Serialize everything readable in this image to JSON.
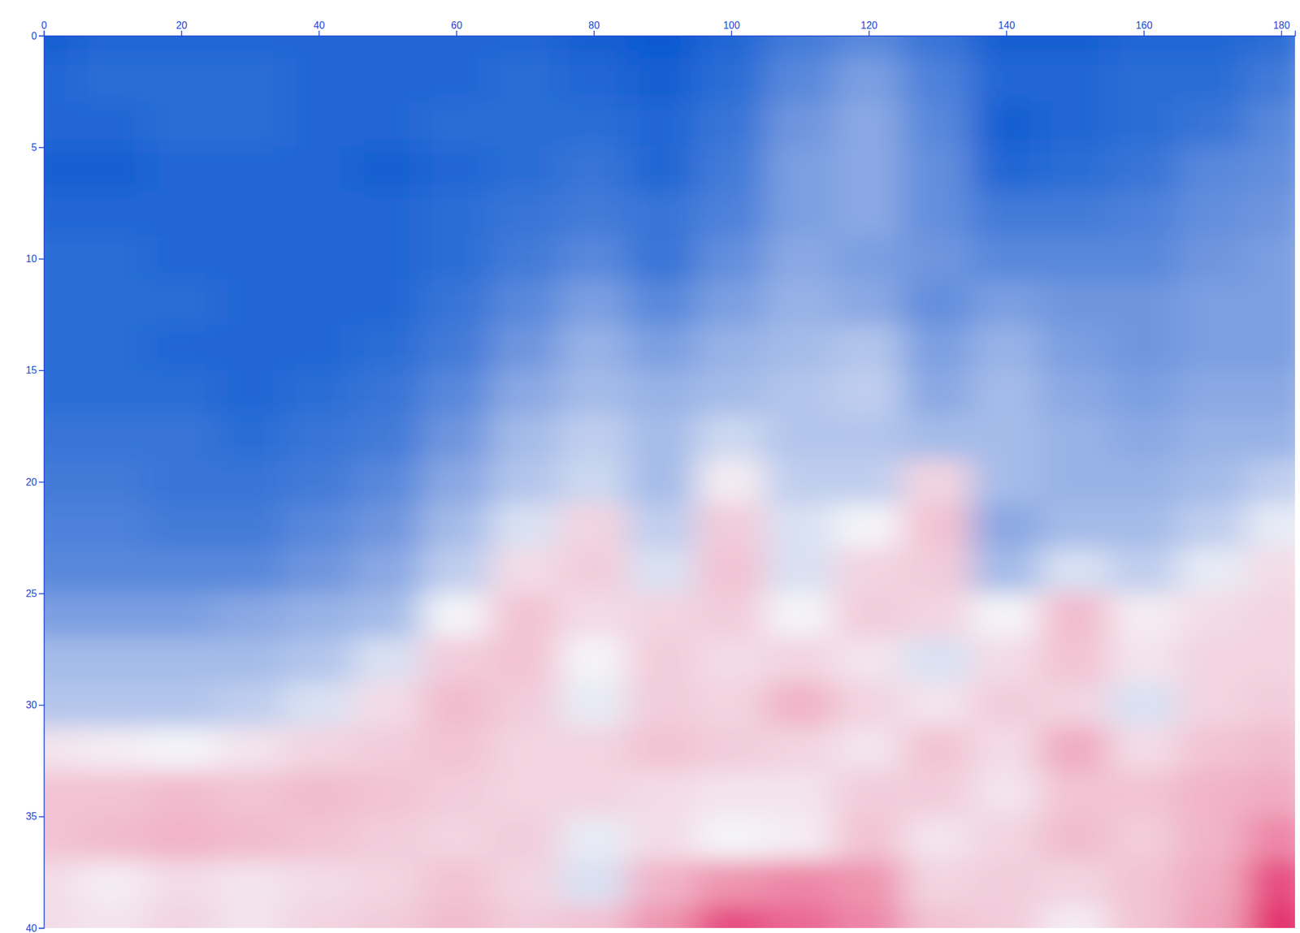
{
  "chart_data": {
    "type": "heatmap",
    "x": [
      0,
      10,
      20,
      30,
      40,
      50,
      60,
      70,
      80,
      90,
      100,
      110,
      120,
      130,
      140,
      150,
      160,
      170,
      180
    ],
    "y": [
      0,
      2,
      4,
      6,
      8,
      10,
      12,
      14,
      16,
      18,
      20,
      22,
      24,
      26,
      28,
      30,
      32,
      34,
      36,
      38,
      40
    ],
    "values": [
      [
        -0.9,
        -0.85,
        -0.85,
        -0.85,
        -0.85,
        -0.85,
        -0.85,
        -0.85,
        -0.9,
        -0.95,
        -0.85,
        -0.7,
        -0.6,
        -0.75,
        -0.9,
        -0.9,
        -0.85,
        -0.85,
        -0.8
      ],
      [
        -0.85,
        -0.8,
        -0.8,
        -0.8,
        -0.85,
        -0.85,
        -0.85,
        -0.8,
        -0.85,
        -0.9,
        -0.8,
        -0.6,
        -0.45,
        -0.65,
        -0.85,
        -0.85,
        -0.8,
        -0.8,
        -0.7
      ],
      [
        -0.85,
        -0.85,
        -0.8,
        -0.8,
        -0.85,
        -0.85,
        -0.8,
        -0.8,
        -0.8,
        -0.85,
        -0.75,
        -0.5,
        -0.4,
        -0.6,
        -0.9,
        -0.85,
        -0.8,
        -0.75,
        -0.6
      ],
      [
        -0.9,
        -0.9,
        -0.85,
        -0.85,
        -0.85,
        -0.9,
        -0.85,
        -0.8,
        -0.75,
        -0.85,
        -0.7,
        -0.45,
        -0.4,
        -0.55,
        -0.85,
        -0.8,
        -0.75,
        -0.6,
        -0.55
      ],
      [
        -0.85,
        -0.85,
        -0.85,
        -0.85,
        -0.85,
        -0.85,
        -0.8,
        -0.75,
        -0.7,
        -0.75,
        -0.65,
        -0.45,
        -0.4,
        -0.55,
        -0.7,
        -0.7,
        -0.65,
        -0.55,
        -0.5
      ],
      [
        -0.8,
        -0.8,
        -0.85,
        -0.85,
        -0.85,
        -0.85,
        -0.8,
        -0.7,
        -0.6,
        -0.75,
        -0.55,
        -0.4,
        -0.45,
        -0.5,
        -0.6,
        -0.6,
        -0.6,
        -0.5,
        -0.45
      ],
      [
        -0.8,
        -0.8,
        -0.8,
        -0.85,
        -0.85,
        -0.85,
        -0.75,
        -0.6,
        -0.45,
        -0.6,
        -0.45,
        -0.35,
        -0.4,
        -0.55,
        -0.45,
        -0.5,
        -0.5,
        -0.45,
        -0.45
      ],
      [
        -0.8,
        -0.8,
        -0.85,
        -0.85,
        -0.85,
        -0.8,
        -0.7,
        -0.5,
        -0.35,
        -0.45,
        -0.35,
        -0.3,
        -0.25,
        -0.45,
        -0.35,
        -0.45,
        -0.5,
        -0.45,
        -0.45
      ],
      [
        -0.8,
        -0.8,
        -0.8,
        -0.85,
        -0.8,
        -0.75,
        -0.6,
        -0.4,
        -0.3,
        -0.35,
        -0.3,
        -0.25,
        -0.2,
        -0.4,
        -0.3,
        -0.4,
        -0.45,
        -0.4,
        -0.4
      ],
      [
        -0.75,
        -0.75,
        -0.75,
        -0.8,
        -0.75,
        -0.7,
        -0.5,
        -0.3,
        -0.2,
        -0.3,
        -0.15,
        -0.25,
        -0.25,
        -0.3,
        -0.3,
        -0.35,
        -0.4,
        -0.35,
        -0.35
      ],
      [
        -0.7,
        -0.7,
        -0.75,
        -0.75,
        -0.7,
        -0.6,
        -0.4,
        -0.25,
        -0.15,
        -0.3,
        0.05,
        -0.2,
        -0.2,
        0.2,
        -0.3,
        -0.35,
        -0.35,
        -0.3,
        -0.2
      ],
      [
        -0.65,
        -0.65,
        -0.7,
        -0.7,
        -0.6,
        -0.5,
        -0.3,
        -0.1,
        0.2,
        -0.2,
        0.25,
        -0.1,
        0.0,
        0.3,
        -0.4,
        -0.3,
        -0.3,
        -0.2,
        -0.05
      ],
      [
        -0.6,
        -0.6,
        -0.6,
        -0.6,
        -0.5,
        -0.4,
        -0.2,
        0.15,
        0.25,
        -0.1,
        0.3,
        -0.1,
        0.2,
        0.25,
        -0.3,
        -0.1,
        -0.2,
        -0.05,
        0.15
      ],
      [
        -0.45,
        -0.45,
        -0.45,
        -0.4,
        -0.35,
        -0.3,
        0.0,
        0.3,
        0.15,
        0.2,
        0.25,
        0.0,
        0.25,
        0.2,
        0.0,
        0.35,
        0.05,
        0.15,
        0.2
      ],
      [
        -0.3,
        -0.3,
        -0.3,
        -0.3,
        -0.25,
        -0.1,
        0.25,
        0.3,
        0.0,
        0.25,
        0.15,
        0.2,
        0.1,
        -0.1,
        0.15,
        0.3,
        0.1,
        0.2,
        0.2
      ],
      [
        -0.25,
        -0.25,
        -0.25,
        -0.2,
        -0.1,
        0.15,
        0.35,
        0.25,
        -0.05,
        0.25,
        0.2,
        0.4,
        0.2,
        0.1,
        0.25,
        0.2,
        -0.1,
        0.2,
        0.25
      ],
      [
        0.1,
        0.05,
        0.0,
        0.1,
        0.2,
        0.25,
        0.3,
        0.2,
        0.2,
        0.3,
        0.25,
        0.2,
        0.1,
        0.3,
        0.15,
        0.45,
        0.15,
        0.3,
        0.35
      ],
      [
        0.3,
        0.3,
        0.35,
        0.3,
        0.35,
        0.3,
        0.25,
        0.2,
        0.2,
        0.15,
        0.1,
        0.1,
        0.25,
        0.25,
        0.1,
        0.3,
        0.3,
        0.4,
        0.45
      ],
      [
        0.3,
        0.35,
        0.4,
        0.35,
        0.3,
        0.25,
        0.2,
        0.25,
        -0.05,
        0.15,
        0.0,
        0.05,
        0.3,
        0.1,
        0.2,
        0.35,
        0.25,
        0.4,
        0.6
      ],
      [
        0.15,
        0.05,
        0.15,
        0.1,
        0.15,
        0.2,
        0.3,
        0.2,
        -0.1,
        0.4,
        0.55,
        0.6,
        0.55,
        0.2,
        0.25,
        0.2,
        0.3,
        0.45,
        0.8
      ],
      [
        0.15,
        0.1,
        0.2,
        0.1,
        0.2,
        0.25,
        0.35,
        0.25,
        0.3,
        0.55,
        0.8,
        0.7,
        0.6,
        0.3,
        0.25,
        0.05,
        0.3,
        0.5,
        0.9
      ]
    ],
    "zlim": [
      -1,
      1
    ],
    "xlim": [
      0,
      182
    ],
    "ylim": [
      0,
      40
    ],
    "xticks": [
      0,
      20,
      40,
      60,
      80,
      100,
      120,
      140,
      160,
      180
    ],
    "yticks": [
      0,
      5,
      10,
      15,
      20,
      25,
      30,
      35,
      40
    ]
  }
}
